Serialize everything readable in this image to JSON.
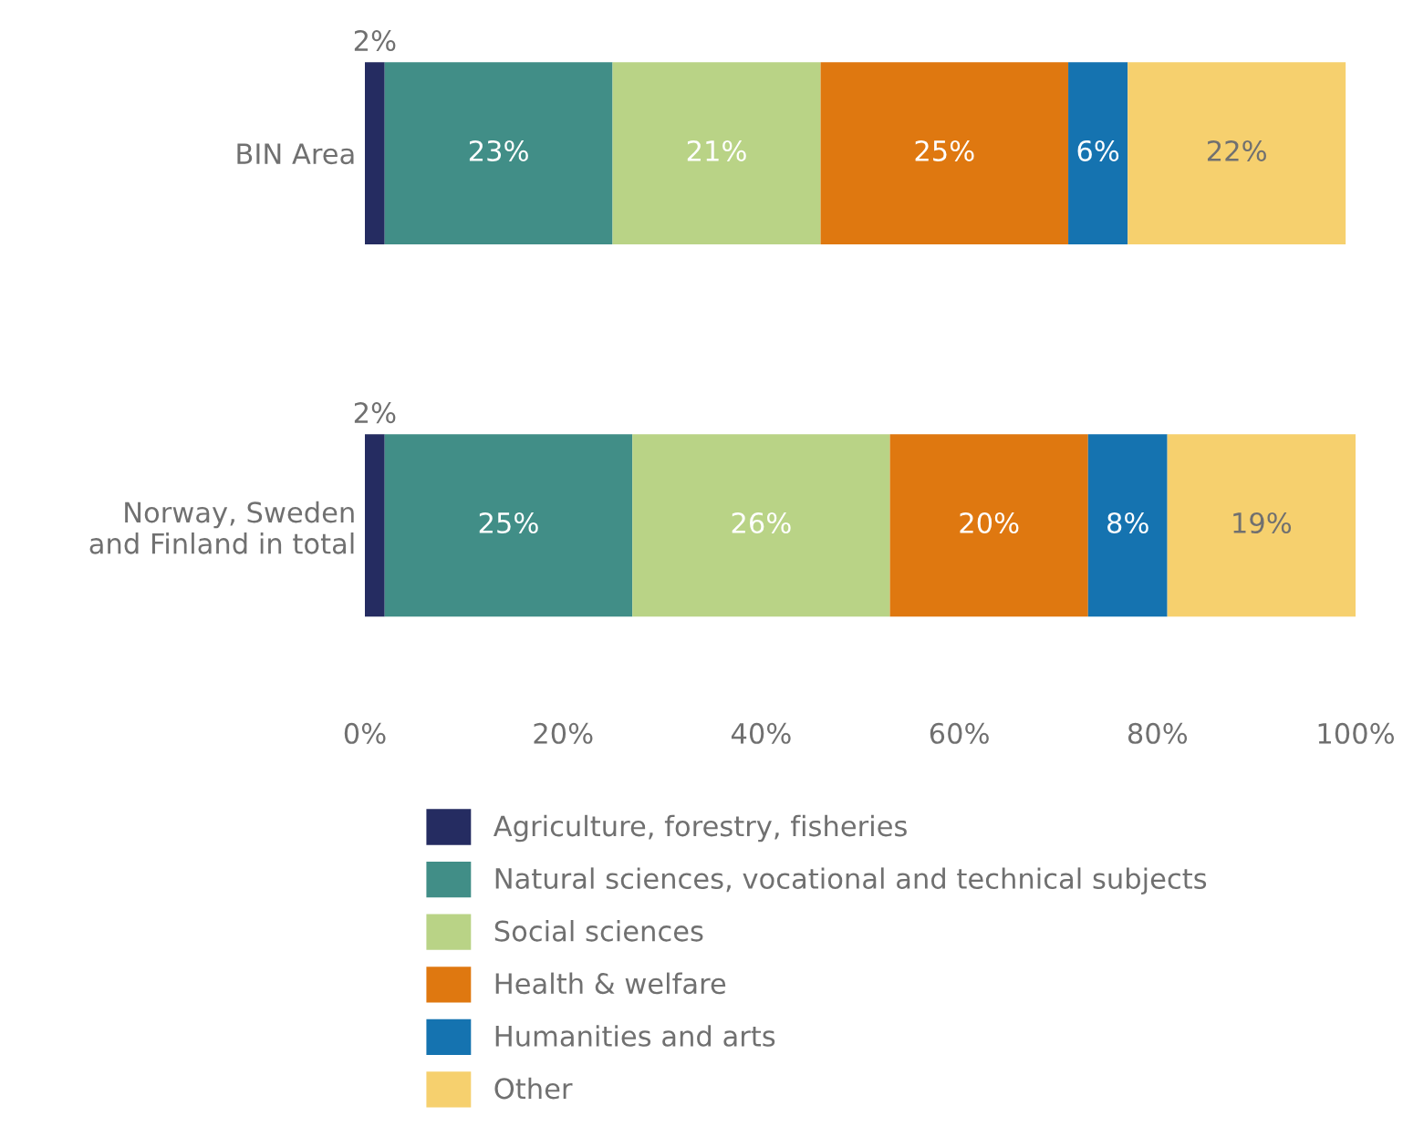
{
  "chart_data": {
    "type": "bar",
    "orientation": "horizontal",
    "stacked": true,
    "grid": false,
    "legend": "bottom",
    "categories": [
      "BIN Area",
      "Norway, Sweden\nand Finland in total"
    ],
    "series": [
      {
        "name": "Agriculture, forestry, fisheries",
        "color": "#252c61",
        "values": [
          2,
          2
        ],
        "value_labels": [
          "2%",
          "2%"
        ]
      },
      {
        "name": "Natural sciences, vocational and technical subjects",
        "color": "#418e87",
        "values": [
          23,
          25
        ],
        "value_labels": [
          "23%",
          "25%"
        ]
      },
      {
        "name": "Social sciences",
        "color": "#b9d386",
        "values": [
          21,
          26
        ],
        "value_labels": [
          "21%",
          "26%"
        ]
      },
      {
        "name": "Health & welfare",
        "color": "#df7810",
        "values": [
          25,
          20
        ],
        "value_labels": [
          "25%",
          "20%"
        ]
      },
      {
        "name": "Humanities and arts",
        "color": "#1573b0",
        "values": [
          6,
          8
        ],
        "value_labels": [
          "6%",
          "8%"
        ]
      },
      {
        "name": "Other",
        "color": "#f6d06e",
        "values": [
          22,
          19
        ],
        "value_labels": [
          "22%",
          "19%"
        ]
      }
    ],
    "xlim": [
      0,
      100
    ],
    "xticks": [
      {
        "value": 0,
        "label": "0%"
      },
      {
        "value": 20,
        "label": "20%"
      },
      {
        "value": 40,
        "label": "40%"
      },
      {
        "value": 60,
        "label": "60%"
      },
      {
        "value": 80,
        "label": "80%"
      },
      {
        "value": 100,
        "label": "100%"
      }
    ]
  }
}
